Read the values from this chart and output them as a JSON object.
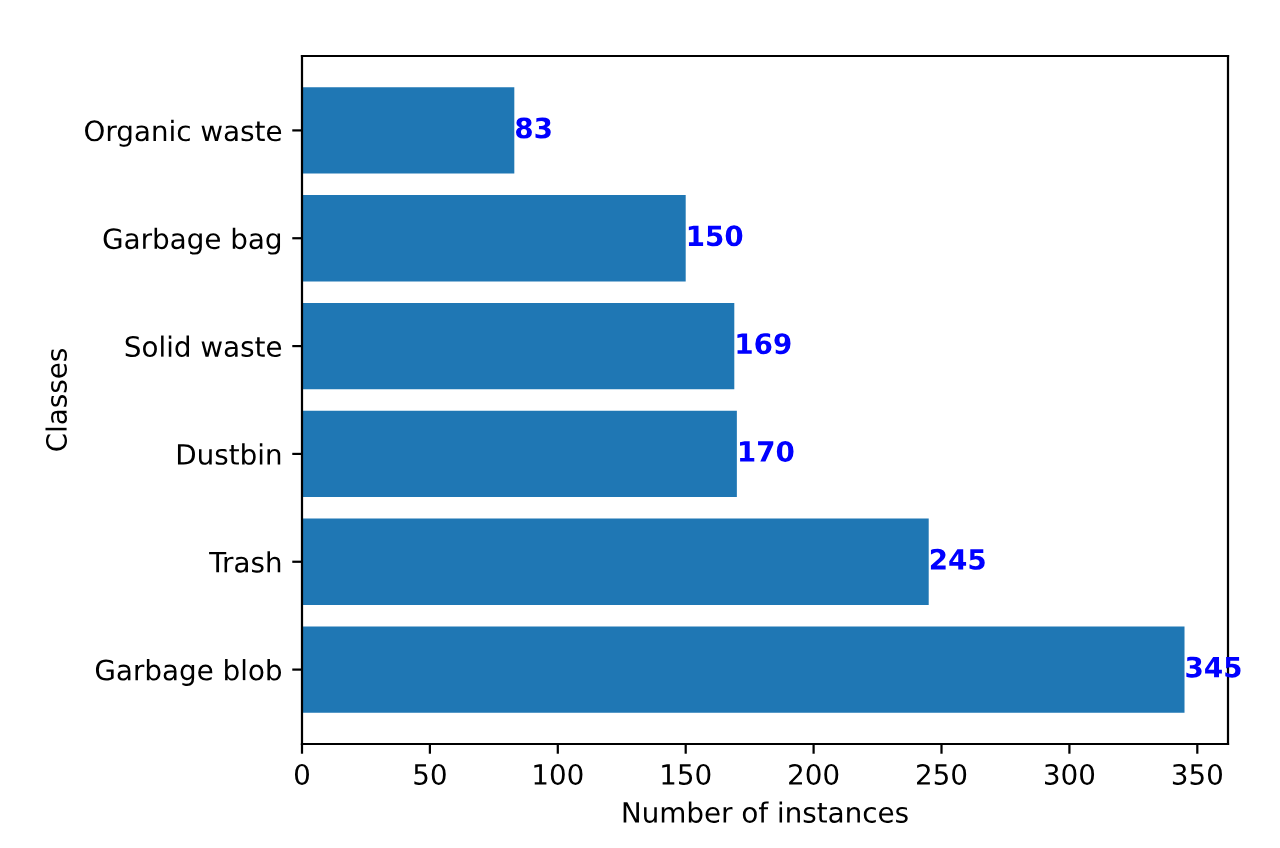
{
  "chart_data": {
    "type": "bar",
    "orientation": "horizontal",
    "xlabel": "Number of instances",
    "ylabel": "Classes",
    "categories": [
      "Organic waste",
      "Garbage bag",
      "Solid waste",
      "Dustbin",
      "Trash",
      "Garbage blob"
    ],
    "values": [
      83,
      150,
      169,
      170,
      245,
      345
    ],
    "color": "#1f77b4",
    "data_labels": true,
    "xlim": [
      0,
      362
    ],
    "xticks": [
      0,
      50,
      100,
      150,
      200,
      250,
      300,
      350
    ],
    "grid": false,
    "legend": false
  }
}
